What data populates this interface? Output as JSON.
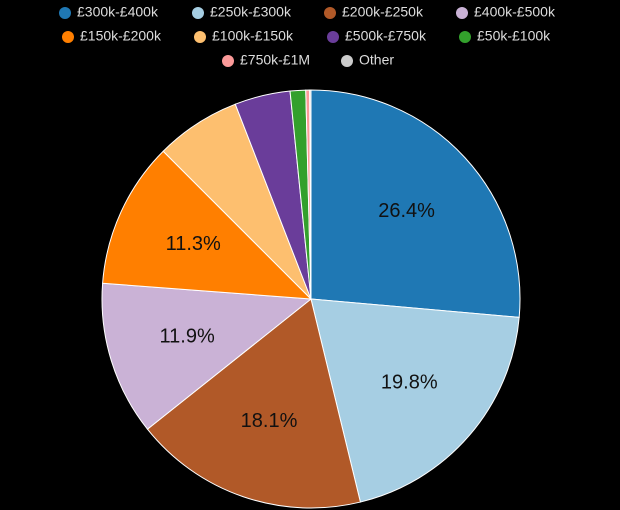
{
  "chart_data": {
    "type": "pie",
    "categories": [
      "£300k-£400k",
      "£250k-£300k",
      "£200k-£250k",
      "£400k-£500k",
      "£150k-£200k",
      "£100k-£150k",
      "£500k-£750k",
      "£50k-£100k",
      "£750k-£1M",
      "Other"
    ],
    "values": [
      26.4,
      19.8,
      18.1,
      11.9,
      11.3,
      6.6,
      4.3,
      1.2,
      0.3,
      0.1
    ],
    "value_labels": [
      "26.4%",
      "19.8%",
      "18.1%",
      "11.9%",
      "11.3%",
      null,
      null,
      null,
      null,
      null
    ],
    "colors": [
      "#1f78b4",
      "#a6cee3",
      "#b15928",
      "#cab2d6",
      "#ff7f00",
      "#fdbf6f",
      "#6a3d9a",
      "#33a02c",
      "#fb9a99",
      "#cccccc"
    ],
    "legend": "top"
  }
}
